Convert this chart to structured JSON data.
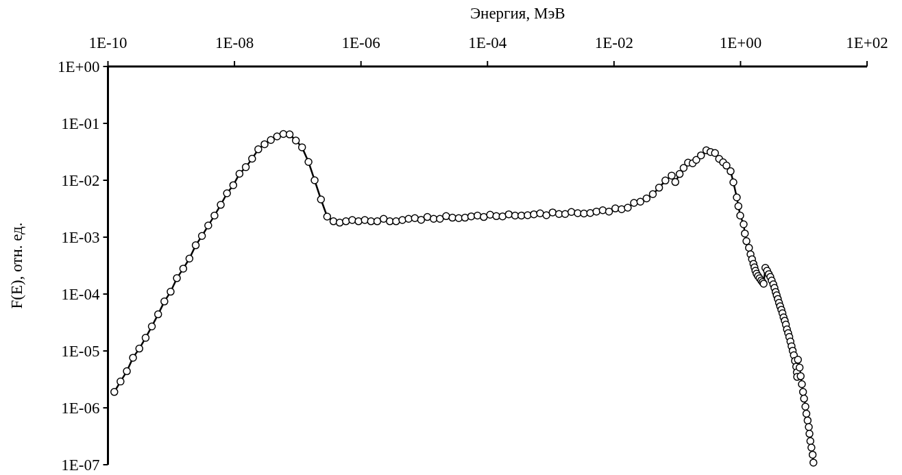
{
  "chart_data": {
    "type": "line",
    "xlabel": "Энергия, МэВ",
    "ylabel": "F(E), отн. ед.",
    "log": "xy",
    "grid": false,
    "marker": "circle",
    "line_style": "solid",
    "xlim": [
      1e-10,
      100
    ],
    "ylim": [
      1e-07,
      1
    ],
    "xticks": [
      {
        "value": 1e-10,
        "label": "1E-10"
      },
      {
        "value": 1e-08,
        "label": "1E-08"
      },
      {
        "value": 1e-06,
        "label": "1E-06"
      },
      {
        "value": 0.0001,
        "label": "1E-04"
      },
      {
        "value": 0.01,
        "label": "1E-02"
      },
      {
        "value": 1,
        "label": "1E+00"
      },
      {
        "value": 100,
        "label": "1E+02"
      }
    ],
    "yticks": [
      {
        "value": 1e-07,
        "label": "1E-07"
      },
      {
        "value": 1e-06,
        "label": "1E-06"
      },
      {
        "value": 1e-05,
        "label": "1E-05"
      },
      {
        "value": 0.0001,
        "label": "1E-04"
      },
      {
        "value": 0.001,
        "label": "1E-03"
      },
      {
        "value": 0.01,
        "label": "1E-02"
      },
      {
        "value": 0.1,
        "label": "1E-01"
      },
      {
        "value": 1,
        "label": "1E+00"
      }
    ],
    "series": [
      {
        "color": "#000000",
        "x": [
          1.26e-10,
          1.58e-10,
          1.99e-10,
          2.49e-10,
          3.13e-10,
          3.94e-10,
          4.94e-10,
          6.21e-10,
          7.8e-10,
          9.79e-10,
          1.23e-09,
          1.55e-09,
          1.94e-09,
          2.44e-09,
          3.06e-09,
          3.85e-09,
          4.83e-09,
          6.07e-09,
          7.62e-09,
          9.57e-09,
          1.2e-08,
          1.51e-08,
          1.9e-08,
          2.38e-08,
          2.99e-08,
          3.76e-08,
          4.72e-08,
          5.93e-08,
          7.45e-08,
          9.35e-08,
          1.17e-07,
          1.48e-07,
          1.85e-07,
          2.33e-07,
          2.92e-07,
          3.67e-07,
          4.61e-07,
          5.79e-07,
          7.28e-07,
          9.14e-07,
          1.15e-06,
          1.44e-06,
          1.81e-06,
          2.28e-06,
          2.86e-06,
          3.59e-06,
          4.51e-06,
          5.66e-06,
          7.11e-06,
          8.93e-06,
          1.12e-05,
          1.41e-05,
          1.77e-05,
          2.22e-05,
          2.79e-05,
          3.51e-05,
          4.41e-05,
          5.53e-05,
          6.95e-05,
          8.73e-05,
          0.00011,
          0.000138,
          0.000173,
          0.000217,
          0.000273,
          0.000343,
          0.000431,
          0.000541,
          0.000679,
          0.000853,
          0.00107,
          0.00135,
          0.00169,
          0.00212,
          0.00267,
          0.00335,
          0.00421,
          0.00528,
          0.00664,
          0.00834,
          0.0105,
          0.0132,
          0.0165,
          0.0207,
          0.0261,
          0.0327,
          0.0411,
          0.0516,
          0.0649,
          0.0815,
          0.0931,
          0.109,
          0.126,
          0.148,
          0.175,
          0.2,
          0.237,
          0.288,
          0.335,
          0.395,
          0.459,
          0.53,
          0.6,
          0.697,
          0.771,
          0.873,
          0.925,
          0.989,
          1.12,
          1.17,
          1.24,
          1.36,
          1.44,
          1.52,
          1.6,
          1.66,
          1.72,
          1.79,
          1.89,
          2.0,
          2.12,
          2.23,
          2.32,
          2.47,
          2.63,
          2.8,
          2.96,
          3.11,
          3.3,
          3.44,
          3.59,
          3.73,
          3.89,
          4.06,
          4.23,
          4.42,
          4.6,
          4.79,
          5.0,
          5.21,
          5.42,
          5.66,
          5.9,
          6.15,
          6.41,
          6.68,
          6.97,
          7.26,
          7.59,
          7.76,
          7.85,
          8.09,
          8.59,
          8.93,
          9.33,
          9.73,
          10.1,
          10.6,
          11.0,
          11.5,
          12.0,
          12.3,
          12.7,
          13.2,
          13.8,
          14.2
        ],
        "values": [
          1.9e-06,
          2.9e-06,
          4.4e-06,
          7.6e-06,
          1.1e-05,
          1.7e-05,
          2.7e-05,
          4.4e-05,
          7.4e-05,
          0.00011,
          0.00019,
          0.00028,
          0.00042,
          0.00072,
          0.00105,
          0.0016,
          0.0024,
          0.0037,
          0.0059,
          0.0082,
          0.013,
          0.017,
          0.024,
          0.035,
          0.043,
          0.051,
          0.059,
          0.065,
          0.064,
          0.05,
          0.038,
          0.021,
          0.01,
          0.0046,
          0.0023,
          0.0019,
          0.0018,
          0.0019,
          0.002,
          0.0019,
          0.002,
          0.0019,
          0.0019,
          0.0021,
          0.0019,
          0.0019,
          0.002,
          0.0021,
          0.00216,
          0.00202,
          0.00226,
          0.0021,
          0.0021,
          0.00234,
          0.0022,
          0.00216,
          0.0022,
          0.00232,
          0.0024,
          0.00226,
          0.00248,
          0.00234,
          0.00232,
          0.00252,
          0.0024,
          0.0024,
          0.00243,
          0.00252,
          0.00262,
          0.00243,
          0.00272,
          0.00255,
          0.00255,
          0.00277,
          0.00264,
          0.0026,
          0.00266,
          0.00282,
          0.00297,
          0.00282,
          0.0032,
          0.0031,
          0.0033,
          0.004,
          0.0042,
          0.0048,
          0.0057,
          0.0074,
          0.0099,
          0.0121,
          0.0093,
          0.0129,
          0.0165,
          0.0204,
          0.0199,
          0.0228,
          0.0274,
          0.0336,
          0.0315,
          0.0301,
          0.0238,
          0.0207,
          0.0181,
          0.0144,
          0.0092,
          0.005,
          0.0035,
          0.0024,
          0.00168,
          0.00116,
          0.00085,
          0.00065,
          0.0005,
          0.00041,
          0.00034,
          0.000295,
          0.000257,
          0.000228,
          0.000207,
          0.000189,
          0.000173,
          0.000162,
          0.000152,
          0.000289,
          0.000257,
          0.000224,
          0.0002,
          0.000173,
          0.000148,
          0.000128,
          0.000109,
          9.5e-05,
          8.2e-05,
          7e-05,
          6.1e-05,
          5.3e-05,
          4.6e-05,
          3.9e-05,
          3.4e-05,
          2.9e-05,
          2.4e-05,
          2.06e-05,
          1.76e-05,
          1.46e-05,
          1.21e-05,
          1.01e-05,
          8.4e-06,
          6.7e-06,
          5.3e-06,
          4.2e-06,
          3.5e-06,
          7e-06,
          5.1e-06,
          3.6e-06,
          2.6e-06,
          1.9e-06,
          1.45e-06,
          1.05e-06,
          7.9e-07,
          6e-07,
          4.6e-07,
          3.5e-07,
          2.6e-07,
          2e-07,
          1.5e-07,
          1.09e-07
        ]
      }
    ]
  }
}
